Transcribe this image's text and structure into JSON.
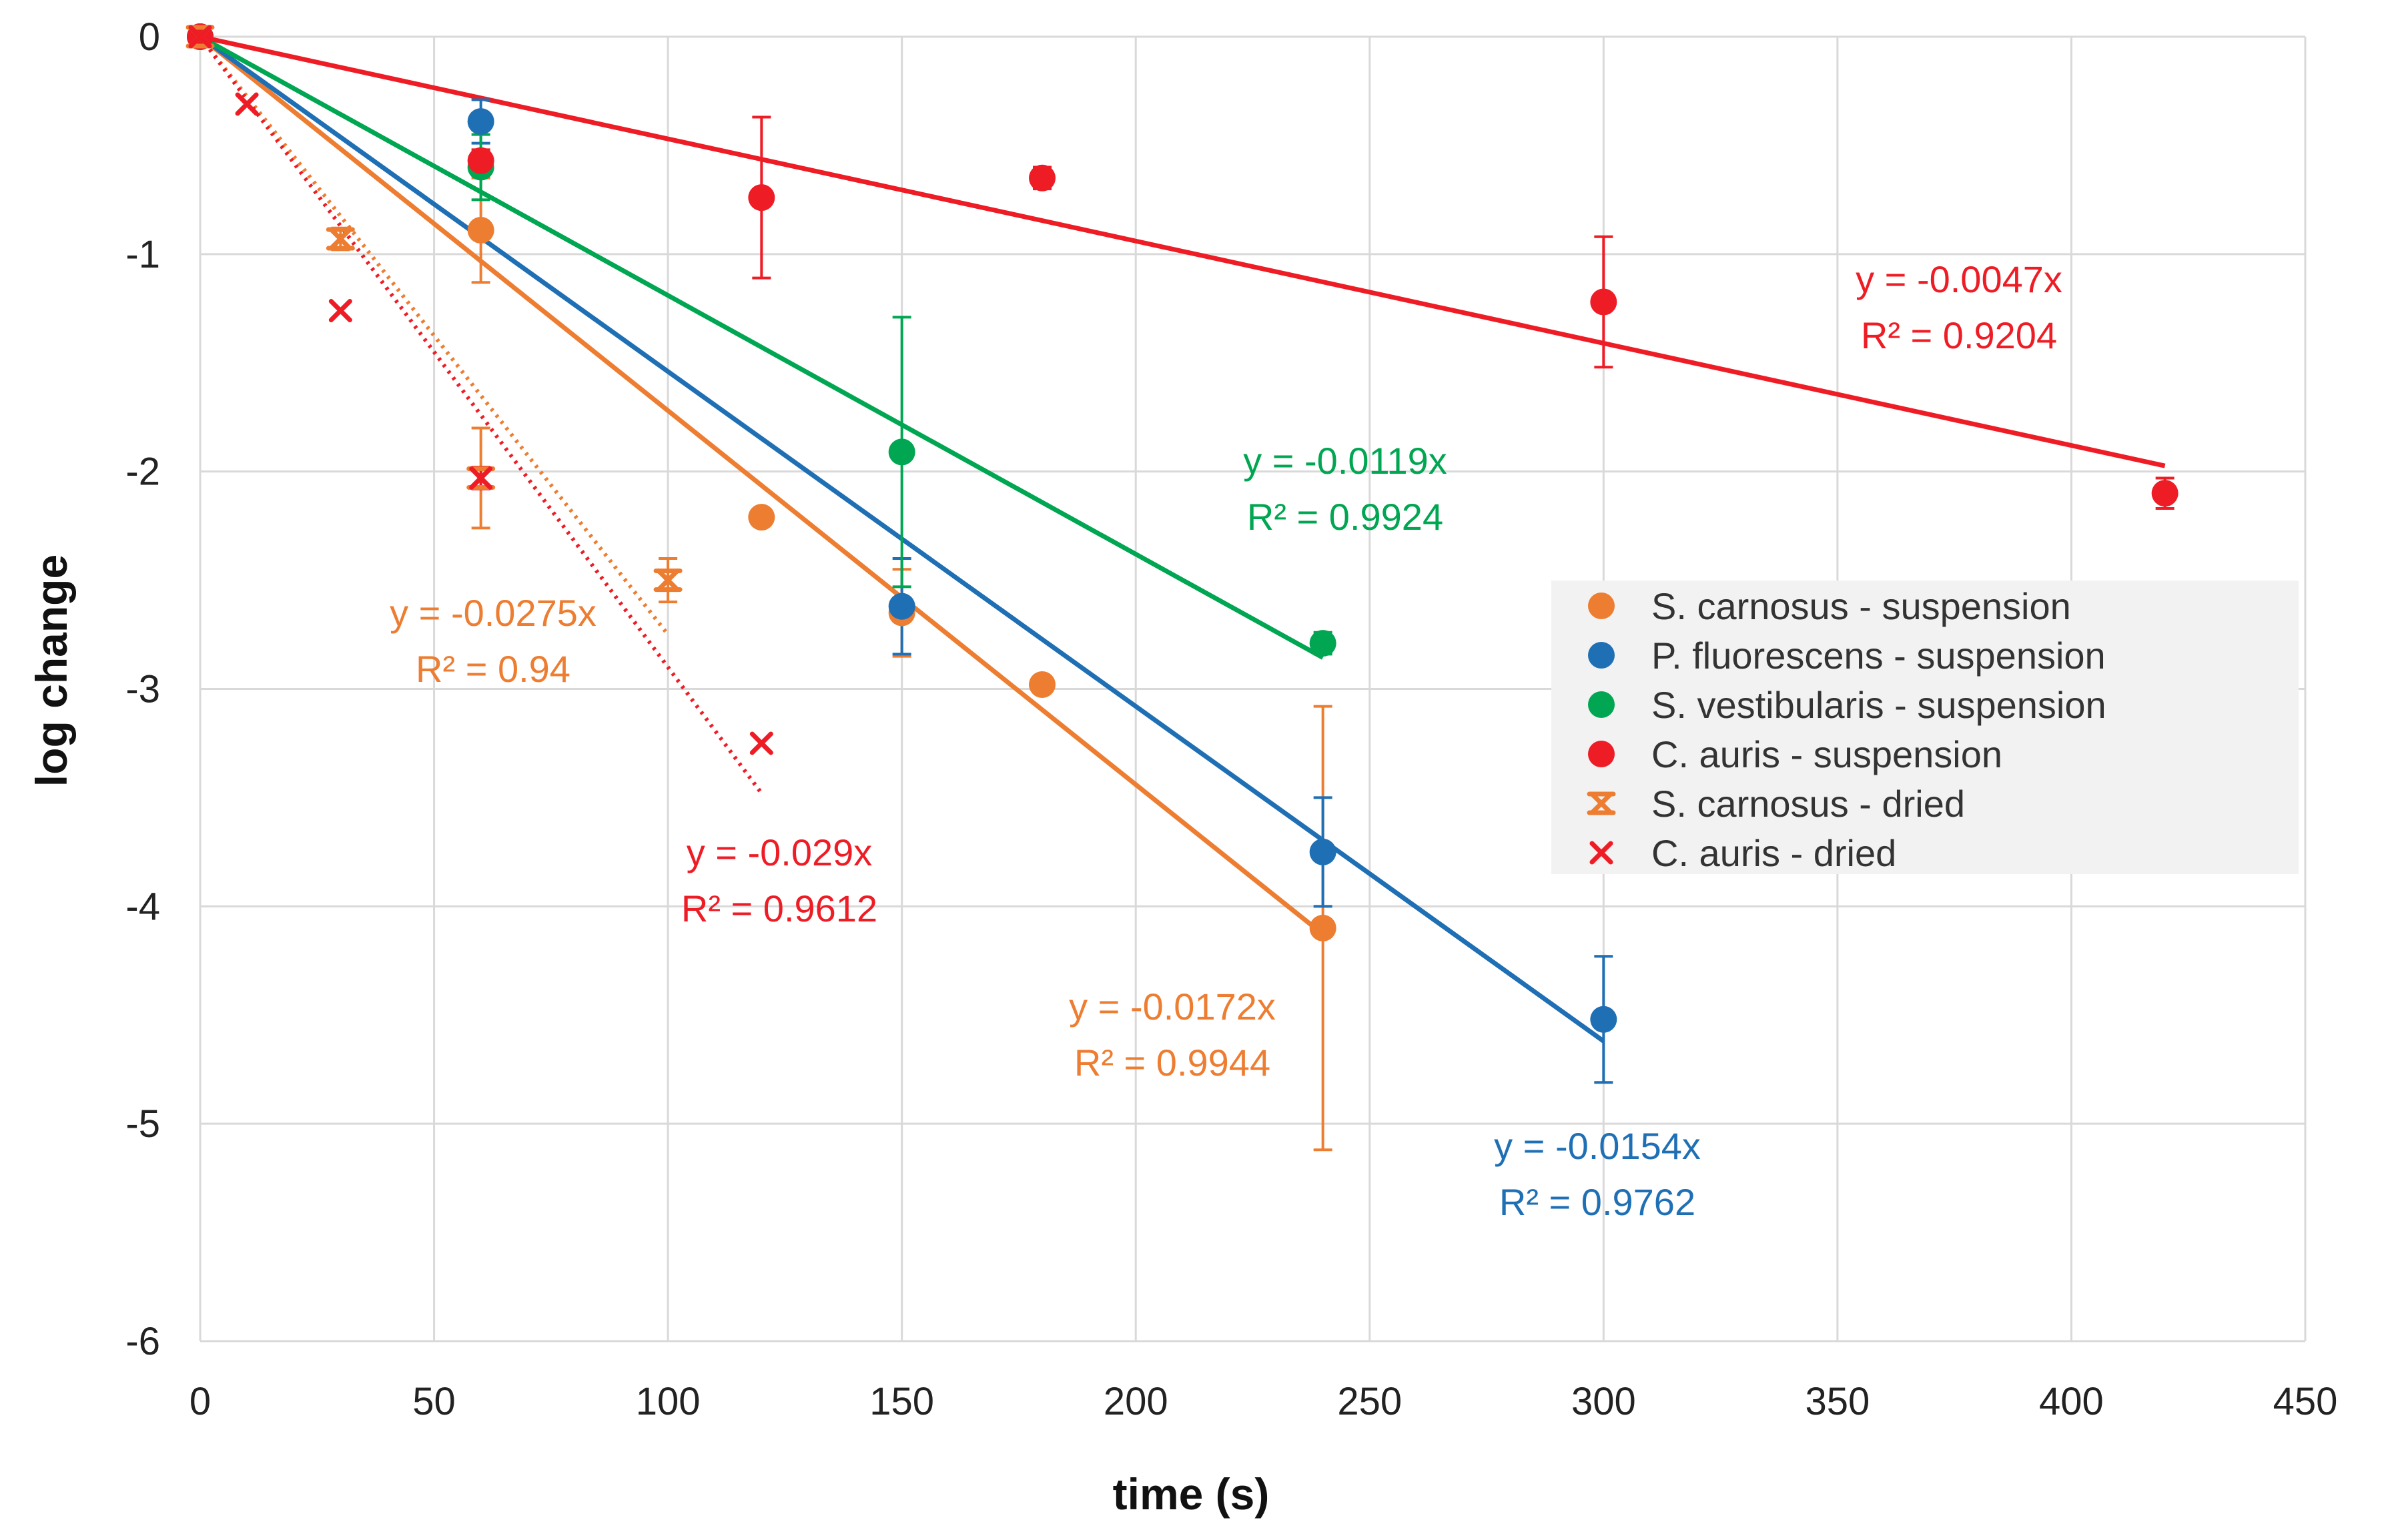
{
  "chart_data": {
    "type": "scatter",
    "xlabel": "time (s)",
    "ylabel": "log change",
    "xlim": [
      0,
      450
    ],
    "ylim": [
      -6,
      0
    ],
    "x_ticks": [
      0,
      50,
      100,
      150,
      200,
      250,
      300,
      350,
      400,
      450
    ],
    "y_ticks": [
      0,
      -1,
      -2,
      -3,
      -4,
      -5,
      -6
    ],
    "grid": true,
    "legend_position": "center-right",
    "series": [
      {
        "name": "S. carnosus - suspension",
        "color": "#ED7D31",
        "marker": "circle",
        "x": [
          0,
          60,
          120,
          150,
          180,
          240
        ],
        "y": [
          0,
          -0.89,
          -2.21,
          -2.65,
          -2.98,
          -4.1
        ],
        "err": [
          0,
          0.24,
          0,
          0.2,
          0,
          1.02
        ],
        "fit": {
          "slope": -0.0172,
          "x_range": [
            0,
            240
          ],
          "line": "solid",
          "equation": "y = -0.0172x",
          "r2": "R² = 0.9944"
        }
      },
      {
        "name": "P. fluorescens - suspension",
        "color": "#1F6FB4",
        "marker": "circle",
        "x": [
          0,
          60,
          150,
          240,
          300
        ],
        "y": [
          0,
          -0.39,
          -2.62,
          -3.75,
          -4.52
        ],
        "err": [
          0,
          0.1,
          0.22,
          0.25,
          0.29
        ],
        "fit": {
          "slope": -0.0154,
          "x_range": [
            0,
            300
          ],
          "line": "solid",
          "equation": "y = -0.0154x",
          "r2": "R² = 0.9762"
        }
      },
      {
        "name": "S. vestibularis - suspension",
        "color": "#00A651",
        "marker": "circle",
        "x": [
          0,
          60,
          150,
          240
        ],
        "y": [
          0,
          -0.6,
          -1.91,
          -2.79
        ],
        "err": [
          0,
          0.15,
          0.62,
          0.05
        ],
        "fit": {
          "slope": -0.0119,
          "x_range": [
            0,
            240
          ],
          "line": "solid",
          "equation": "y = -0.0119x",
          "r2": "R² = 0.9924"
        }
      },
      {
        "name": "C. auris - suspension",
        "color": "#EE1C25",
        "marker": "circle",
        "x": [
          0,
          60,
          120,
          180,
          300,
          420
        ],
        "y": [
          0,
          -0.57,
          -0.74,
          -0.65,
          -1.22,
          -2.1
        ],
        "err": [
          0,
          0.05,
          0.37,
          0.05,
          0.3,
          0.07
        ],
        "fit": {
          "slope": -0.0047,
          "x_range": [
            0,
            420
          ],
          "line": "solid",
          "equation": "y = -0.0047x",
          "r2": "R² = 0.9204"
        }
      },
      {
        "name": "S. carnosus - dried",
        "color": "#ED7D31",
        "marker": "x",
        "x": [
          0,
          30,
          60,
          100
        ],
        "y": [
          0,
          -0.93,
          -2.03,
          -2.5
        ],
        "err": [
          0,
          0.05,
          0.23,
          0.1
        ],
        "fit": {
          "slope": -0.0275,
          "x_range": [
            0,
            100
          ],
          "line": "dotted",
          "equation": "y = -0.0275x",
          "r2": "R² = 0.94"
        }
      },
      {
        "name": "C. auris - dried",
        "color": "#EE1C25",
        "marker": "x",
        "x": [
          0,
          10,
          30,
          60,
          120
        ],
        "y": [
          0,
          -0.31,
          -1.26,
          -2.03,
          -3.25
        ],
        "err": [
          0,
          0,
          0,
          0.05,
          0
        ],
        "fit": {
          "slope": -0.029,
          "x_range": [
            0,
            120
          ],
          "line": "dotted",
          "equation": "y = -0.029x",
          "r2": "R² = 0.9612"
        }
      }
    ]
  }
}
